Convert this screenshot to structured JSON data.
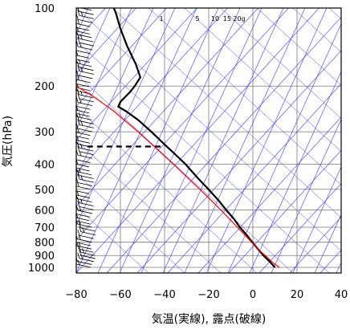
{
  "chart_data": {
    "type": "line",
    "title": "",
    "xlabel": "気温(実線), 露点(破線)",
    "ylabel": "気圧(hPa)",
    "x_axis": {
      "range": [
        -80,
        40
      ],
      "ticks": [
        -80,
        -60,
        -40,
        -20,
        0,
        20,
        40
      ],
      "tick_labels": [
        "−80",
        "−60",
        "−40",
        "−20",
        "0",
        "20",
        "40"
      ]
    },
    "y_axis": {
      "scale": "log-pressure",
      "range": [
        1050,
        100
      ],
      "ticks": [
        100,
        200,
        300,
        400,
        500,
        600,
        700,
        800,
        900,
        1000
      ],
      "tick_labels": [
        "100",
        "200",
        "300",
        "400",
        "500",
        "600",
        "700",
        "800",
        "900",
        "1000"
      ]
    },
    "grid": true,
    "mixing_ratio_labels": [
      "1",
      "5",
      "10",
      "15",
      "20g"
    ],
    "series": [
      {
        "role": "temperature",
        "style": "solid",
        "color": "#000000",
        "points": [
          {
            "p": 1000,
            "t": 10.0
          },
          {
            "p": 950,
            "t": 7.6
          },
          {
            "p": 900,
            "t": 4.8
          },
          {
            "p": 850,
            "t": 2.3
          },
          {
            "p": 800,
            "t": -0.3
          },
          {
            "p": 750,
            "t": -2.8
          },
          {
            "p": 700,
            "t": -5.9
          },
          {
            "p": 650,
            "t": -8.6
          },
          {
            "p": 600,
            "t": -12.1
          },
          {
            "p": 550,
            "t": -15.7
          },
          {
            "p": 500,
            "t": -20.1
          },
          {
            "p": 450,
            "t": -25.2
          },
          {
            "p": 400,
            "t": -30.5
          },
          {
            "p": 370,
            "t": -34.7
          },
          {
            "p": 340,
            "t": -39.3
          },
          {
            "p": 300,
            "t": -46.0
          },
          {
            "p": 270,
            "t": -52.0
          },
          {
            "p": 250,
            "t": -57.5
          },
          {
            "p": 240,
            "t": -61.0
          },
          {
            "p": 230,
            "t": -60.0
          },
          {
            "p": 210,
            "t": -55.5
          },
          {
            "p": 200,
            "t": -53.5
          },
          {
            "p": 185,
            "t": -51.0
          },
          {
            "p": 165,
            "t": -53.0
          },
          {
            "p": 140,
            "t": -57.0
          },
          {
            "p": 120,
            "t": -60.0
          },
          {
            "p": 105,
            "t": -62.0
          },
          {
            "p": 100,
            "t": -63.0
          }
        ]
      },
      {
        "role": "dewpoint",
        "style": "dashed",
        "color": "#000000",
        "points": [
          {
            "p": 342,
            "t": -75.0
          },
          {
            "p": 342,
            "t": -40.0
          }
        ]
      },
      {
        "role": "parcel",
        "style": "solid",
        "color": "#ff0000",
        "points": [
          {
            "p": 1000,
            "t": 12.0
          },
          {
            "p": 950,
            "t": 8.5
          },
          {
            "p": 900,
            "t": 5.6
          },
          {
            "p": 850,
            "t": 2.2
          },
          {
            "p": 800,
            "t": -0.6
          },
          {
            "p": 700,
            "t": -7.0
          },
          {
            "p": 600,
            "t": -14.6
          },
          {
            "p": 500,
            "t": -24.0
          },
          {
            "p": 400,
            "t": -36.0
          },
          {
            "p": 340,
            "t": -45.0
          },
          {
            "p": 300,
            "t": -52.0
          },
          {
            "p": 250,
            "t": -63.0
          },
          {
            "p": 220,
            "t": -72.0
          },
          {
            "p": 200,
            "t": -80.0
          }
        ]
      }
    ],
    "wind_barbs": {
      "column": "left",
      "color": "#000000",
      "pressures": [
        102,
        106,
        110,
        114,
        118,
        122,
        126,
        130,
        135,
        140,
        145,
        150,
        156,
        162,
        168,
        174,
        180,
        187,
        194,
        201,
        208,
        215,
        222,
        230,
        238,
        246,
        254,
        262,
        270,
        280,
        290,
        300,
        310,
        320,
        332,
        344,
        356,
        368,
        380,
        395,
        410,
        425,
        440,
        455,
        470,
        485,
        500,
        520,
        540,
        560,
        580,
        600,
        620,
        640,
        660,
        680,
        700,
        725,
        750,
        775,
        800,
        825,
        850,
        875,
        900,
        925,
        950,
        975,
        1000
      ]
    },
    "background_lines": {
      "color": "#3a3af0"
    }
  }
}
